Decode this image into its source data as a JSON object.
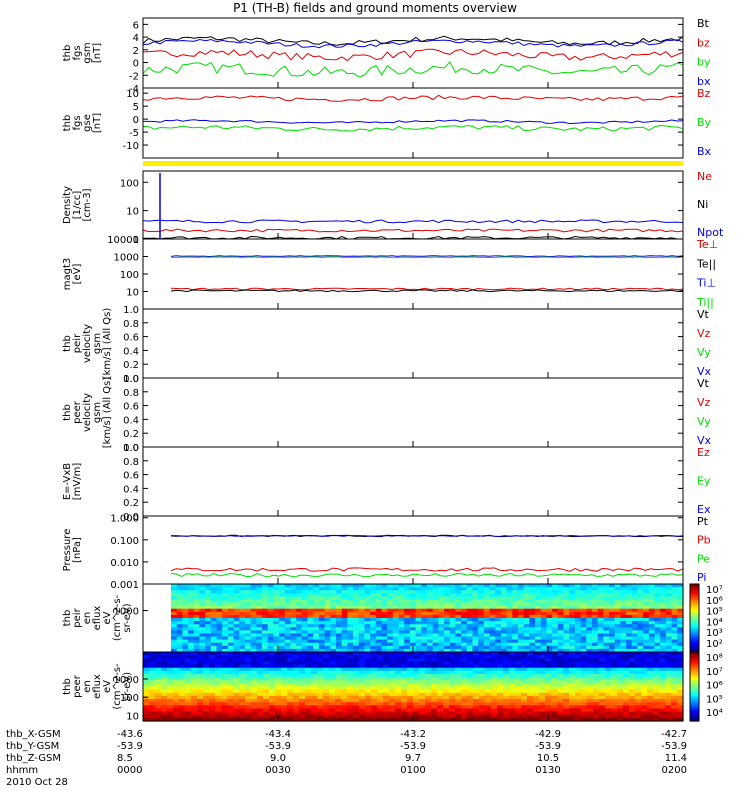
{
  "title": "P1 (TH-B) fields and ground moments overview",
  "colors": {
    "black": "#000000",
    "red": "#e00000",
    "green": "#00dd00",
    "blue": "#0000e0",
    "yellow": "#ffee00"
  },
  "chart_data": [
    {
      "type": "line",
      "ylabel": [
        "thb",
        "fgs",
        "gsm",
        "[nT]"
      ],
      "ylim": [
        -4,
        7
      ],
      "yticks": [
        -4,
        -2,
        0,
        2,
        4,
        6
      ],
      "series": [
        {
          "name": "Bt",
          "color": "black",
          "level": 3.4,
          "noise": 0.4
        },
        {
          "name": "bz",
          "color": "red",
          "level": 1.2,
          "noise": 0.6
        },
        {
          "name": "by",
          "color": "green",
          "level": -1.2,
          "noise": 0.9
        },
        {
          "name": "bx",
          "color": "blue",
          "level": 3.0,
          "noise": 0.3
        }
      ]
    },
    {
      "type": "line",
      "ylabel": [
        "thb",
        "fgs",
        "gse",
        "[nT]"
      ],
      "ylim": [
        -15,
        12
      ],
      "yticks": [
        -10,
        -5,
        0,
        5,
        10
      ],
      "series": [
        {
          "name": "Bz",
          "color": "red",
          "level": 8,
          "noise": 0.8
        },
        {
          "name": "By",
          "color": "green",
          "level": -3.5,
          "noise": 0.9
        },
        {
          "name": "Bx",
          "color": "blue",
          "level": -1,
          "noise": 0.4
        }
      ]
    },
    {
      "type": "line",
      "log": true,
      "ylabel": [
        "Density",
        "[1/cc]",
        "[cm-3]"
      ],
      "ylim": [
        1,
        250
      ],
      "yticks": [
        1,
        10,
        100
      ],
      "series": [
        {
          "name": "Ne",
          "color": "red",
          "level": 2,
          "noise": 0.05
        },
        {
          "name": "Ni",
          "color": "black",
          "level": 1.1,
          "noise": 0.05
        },
        {
          "name": "Npot",
          "color": "blue",
          "level": 4.2,
          "noise": 0.05
        }
      ]
    },
    {
      "type": "line",
      "log": true,
      "ylabel": [
        "magt3",
        "[eV]"
      ],
      "ylim": [
        1,
        10000
      ],
      "yticks": [
        10,
        100,
        1000,
        10000
      ],
      "series": [
        {
          "name": "Te⊥",
          "color": "red",
          "level": 14,
          "noise": 0.05
        },
        {
          "name": "Te||",
          "color": "black",
          "level": 11,
          "noise": 0.05
        },
        {
          "name": "Ti⊥",
          "color": "blue",
          "level": 1050,
          "noise": 0.02
        },
        {
          "name": "Ti||",
          "color": "green",
          "level": 900,
          "noise": 0.02
        }
      ]
    },
    {
      "type": "line",
      "ylabel": [
        "thb",
        "peir",
        "velocity",
        "gsm",
        "[km/s] (All Qs)"
      ],
      "ylim": [
        0,
        1
      ],
      "yticks": [
        0.0,
        0.2,
        0.4,
        0.6,
        0.8,
        1.0
      ],
      "series": [
        {
          "name": "Vt",
          "color": "black"
        },
        {
          "name": "Vz",
          "color": "red"
        },
        {
          "name": "Vy",
          "color": "green"
        },
        {
          "name": "Vx",
          "color": "blue"
        }
      ]
    },
    {
      "type": "line",
      "ylabel": [
        "thb",
        "peer",
        "velocity",
        "gsm",
        "[km/s] (All Qs)"
      ],
      "ylim": [
        0,
        1
      ],
      "yticks": [
        0.0,
        0.2,
        0.4,
        0.6,
        0.8,
        1.0
      ],
      "series": [
        {
          "name": "Vt",
          "color": "black"
        },
        {
          "name": "Vz",
          "color": "red"
        },
        {
          "name": "Vy",
          "color": "green"
        },
        {
          "name": "Vx",
          "color": "blue"
        }
      ]
    },
    {
      "type": "line",
      "ylabel": [
        "E=-VxB",
        "[mV/m]"
      ],
      "ylim": [
        0,
        1
      ],
      "yticks": [
        0.0,
        0.2,
        0.4,
        0.6,
        0.8,
        1.0
      ],
      "series": [
        {
          "name": "Ez",
          "color": "red"
        },
        {
          "name": "Ey",
          "color": "green"
        },
        {
          "name": "Ex",
          "color": "blue"
        }
      ]
    },
    {
      "type": "line",
      "log": true,
      "ylabel": [
        "Pressure",
        "[nPa]"
      ],
      "ylim": [
        0.001,
        1.2
      ],
      "yticks": [
        0.001,
        0.01,
        0.1,
        1.0
      ],
      "ytick_labels": [
        "0.001",
        "0.010",
        "0.100",
        "1.000"
      ],
      "series": [
        {
          "name": "Pt",
          "color": "black",
          "level": 0.15,
          "noise": 0.03
        },
        {
          "name": "Pb",
          "color": "red",
          "level": 0.0045,
          "noise": 0.08
        },
        {
          "name": "Pe",
          "color": "green",
          "level": 0.0025,
          "noise": 0.08
        },
        {
          "name": "Pi",
          "color": "blue",
          "level": 0.15,
          "noise": 0.02
        }
      ]
    },
    {
      "type": "heatmap",
      "ylabel": [
        "thb",
        "peir",
        "en",
        "eflux",
        "eV",
        "(cm^2-s-",
        "sr-eV)"
      ],
      "yticks": [
        1000
      ],
      "colorbar_labels": [
        "10^7",
        "10^6",
        "10^5",
        "10^4",
        "10^3",
        "10^2"
      ]
    },
    {
      "type": "heatmap",
      "ylabel": [
        "thb",
        "peer",
        "en",
        "eflux",
        "eV",
        "(cm^2-s-",
        "sr-eV)"
      ],
      "yticks": [
        1000,
        100,
        10
      ],
      "colorbar_labels": [
        "10^8",
        "10^7",
        "10^6",
        "10^5",
        "10^4"
      ]
    }
  ],
  "x_axis": {
    "row_labels": [
      "thb_X-GSM",
      "thb_Y-GSM",
      "thb_Z-GSM",
      "hhmm",
      "2010 Oct 28"
    ],
    "columns": [
      {
        "x": "-43.6",
        "y": "-53.9",
        "z": "8.5",
        "t": "0000"
      },
      {
        "x": "-43.4",
        "y": "-53.9",
        "z": "9.0",
        "t": "0030"
      },
      {
        "x": "-43.2",
        "y": "-53.9",
        "z": "9.7",
        "t": "0100"
      },
      {
        "x": "-42.9",
        "y": "-53.9",
        "z": "10.5",
        "t": "0130"
      },
      {
        "x": "-42.7",
        "y": "-53.9",
        "z": "11.4",
        "t": "0200"
      }
    ]
  }
}
